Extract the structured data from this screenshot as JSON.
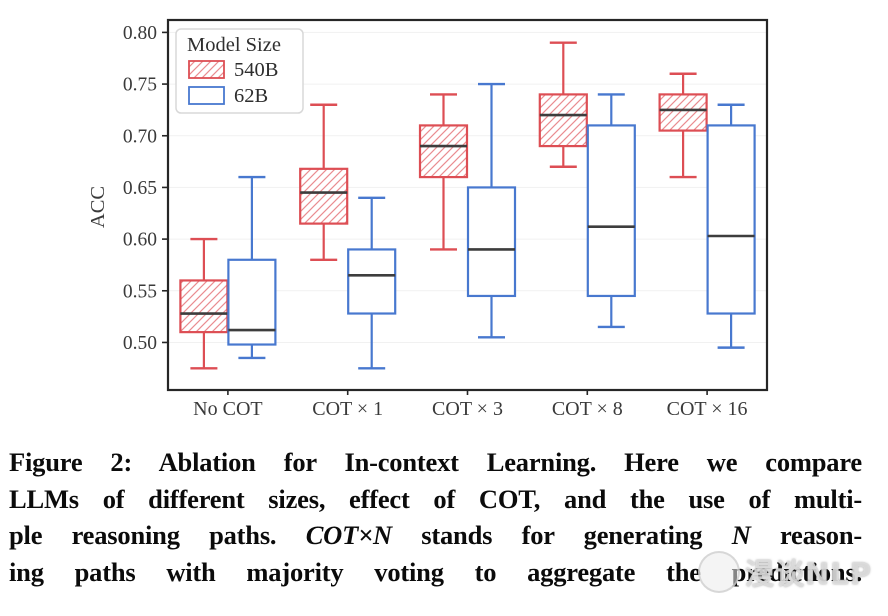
{
  "chart_data": {
    "type": "boxplot",
    "title": "",
    "xlabel": "",
    "ylabel": "ACC",
    "categories": [
      "No COT",
      "COT × 1",
      "COT × 3",
      "COT × 8",
      "COT × 16"
    ],
    "yticks": [
      0.5,
      0.55,
      0.6,
      0.65,
      0.7,
      0.75,
      0.8
    ],
    "ylim": [
      0.454,
      0.812
    ],
    "grid": "faint-horizontal",
    "legend": {
      "title": "Model Size",
      "position": "upper left"
    },
    "series": [
      {
        "name": "540B",
        "color": "#dd4e54",
        "hatch": "/",
        "boxes": [
          {
            "lo": 0.475,
            "q1": 0.51,
            "med": 0.528,
            "q3": 0.56,
            "hi": 0.6
          },
          {
            "lo": 0.58,
            "q1": 0.615,
            "med": 0.645,
            "q3": 0.668,
            "hi": 0.73
          },
          {
            "lo": 0.59,
            "q1": 0.66,
            "med": 0.69,
            "q3": 0.71,
            "hi": 0.74
          },
          {
            "lo": 0.67,
            "q1": 0.69,
            "med": 0.72,
            "q3": 0.74,
            "hi": 0.79
          },
          {
            "lo": 0.66,
            "q1": 0.705,
            "med": 0.725,
            "q3": 0.74,
            "hi": 0.76
          }
        ]
      },
      {
        "name": "62B",
        "color": "#4878cf",
        "hatch": null,
        "boxes": [
          {
            "lo": 0.485,
            "q1": 0.498,
            "med": 0.512,
            "q3": 0.58,
            "hi": 0.66
          },
          {
            "lo": 0.475,
            "q1": 0.528,
            "med": 0.565,
            "q3": 0.59,
            "hi": 0.64
          },
          {
            "lo": 0.505,
            "q1": 0.545,
            "med": 0.59,
            "q3": 0.65,
            "hi": 0.75
          },
          {
            "lo": 0.515,
            "q1": 0.545,
            "med": 0.612,
            "q3": 0.71,
            "hi": 0.74
          },
          {
            "lo": 0.495,
            "q1": 0.528,
            "med": 0.603,
            "q3": 0.71,
            "hi": 0.73
          }
        ]
      }
    ],
    "median_color": "#3d3d3d"
  },
  "caption": {
    "label": "Figure 2:",
    "lines": [
      [
        {
          "text": "Figure 2: Ablation for In-context Learning. Here we compare"
        }
      ],
      [
        {
          "text": "LLMs of different sizes, effect of COT, and the use of multi-"
        }
      ],
      [
        {
          "text": "ple reasoning paths. "
        },
        {
          "text": "COT×N",
          "italic": true
        },
        {
          "text": " stands for generating "
        },
        {
          "text": "N",
          "italic": true
        },
        {
          "text": " reason-"
        }
      ],
      [
        {
          "text": "ing paths with majority voting to aggregate the predictions."
        }
      ]
    ]
  },
  "watermark": {
    "text": "漫谈NLP"
  }
}
